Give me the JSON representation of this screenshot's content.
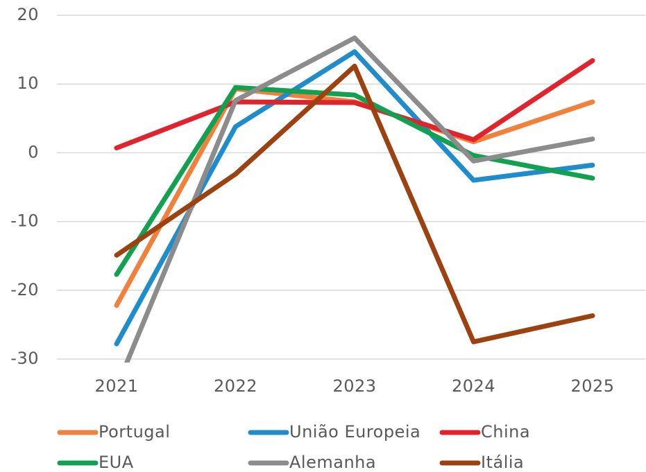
{
  "chart_data": {
    "type": "line",
    "categories": [
      "2021",
      "2022",
      "2023",
      "2024",
      "2025"
    ],
    "series": [
      {
        "name": "Portugal",
        "color": "#f0803c",
        "values": [
          -22.2,
          9.3,
          7.4,
          1.6,
          7.4
        ]
      },
      {
        "name": "União Europeia",
        "color": "#1f8dcc",
        "values": [
          -27.8,
          3.8,
          14.7,
          -4.0,
          -1.8
        ]
      },
      {
        "name": "China",
        "color": "#e0242e",
        "values": [
          0.7,
          7.4,
          7.3,
          1.9,
          13.4
        ]
      },
      {
        "name": "EUA",
        "color": "#12a150",
        "values": [
          -17.7,
          9.5,
          8.4,
          -0.4,
          -3.7
        ]
      },
      {
        "name": "Alemanha",
        "color": "#8c8c8c",
        "values": [
          -34.1,
          7.6,
          16.7,
          -1.2,
          2.0
        ]
      },
      {
        "name": "Itália",
        "color": "#9c4210",
        "values": [
          -14.9,
          -3.1,
          12.6,
          -27.5,
          -23.7
        ]
      }
    ],
    "ylim": [
      -30,
      20
    ],
    "yticks": [
      -30,
      -20,
      -10,
      0,
      10,
      20
    ],
    "grid": true,
    "legend": "bottom"
  }
}
